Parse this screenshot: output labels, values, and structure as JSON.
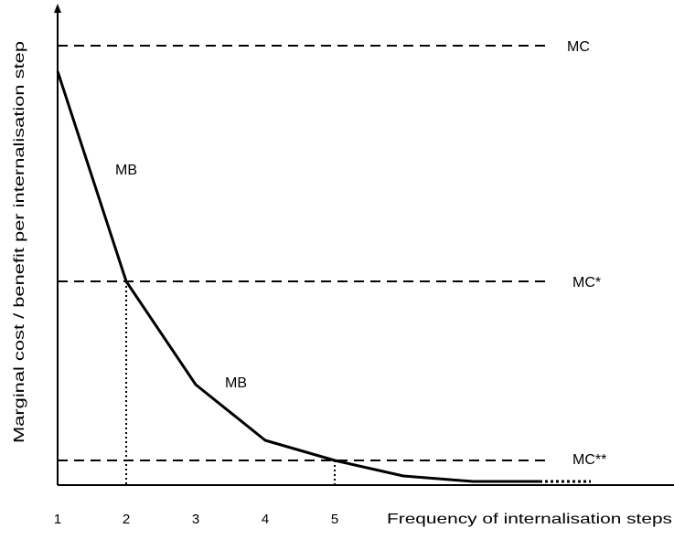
{
  "figure": {
    "y_axis_label": "Marginal cost / benefit per internalisation step",
    "x_axis_label": "Frequency of internalisation steps",
    "x_ticks": [
      "1",
      "2",
      "3",
      "4",
      "5"
    ],
    "mc_labels": {
      "mc": "MC",
      "mc_star": "MC*",
      "mc_double_star": "MC**"
    },
    "mb_labels": {
      "upper": "MB",
      "lower": "MB"
    },
    "colors": {
      "line": "#000000",
      "background": "#ffffff"
    }
  }
}
